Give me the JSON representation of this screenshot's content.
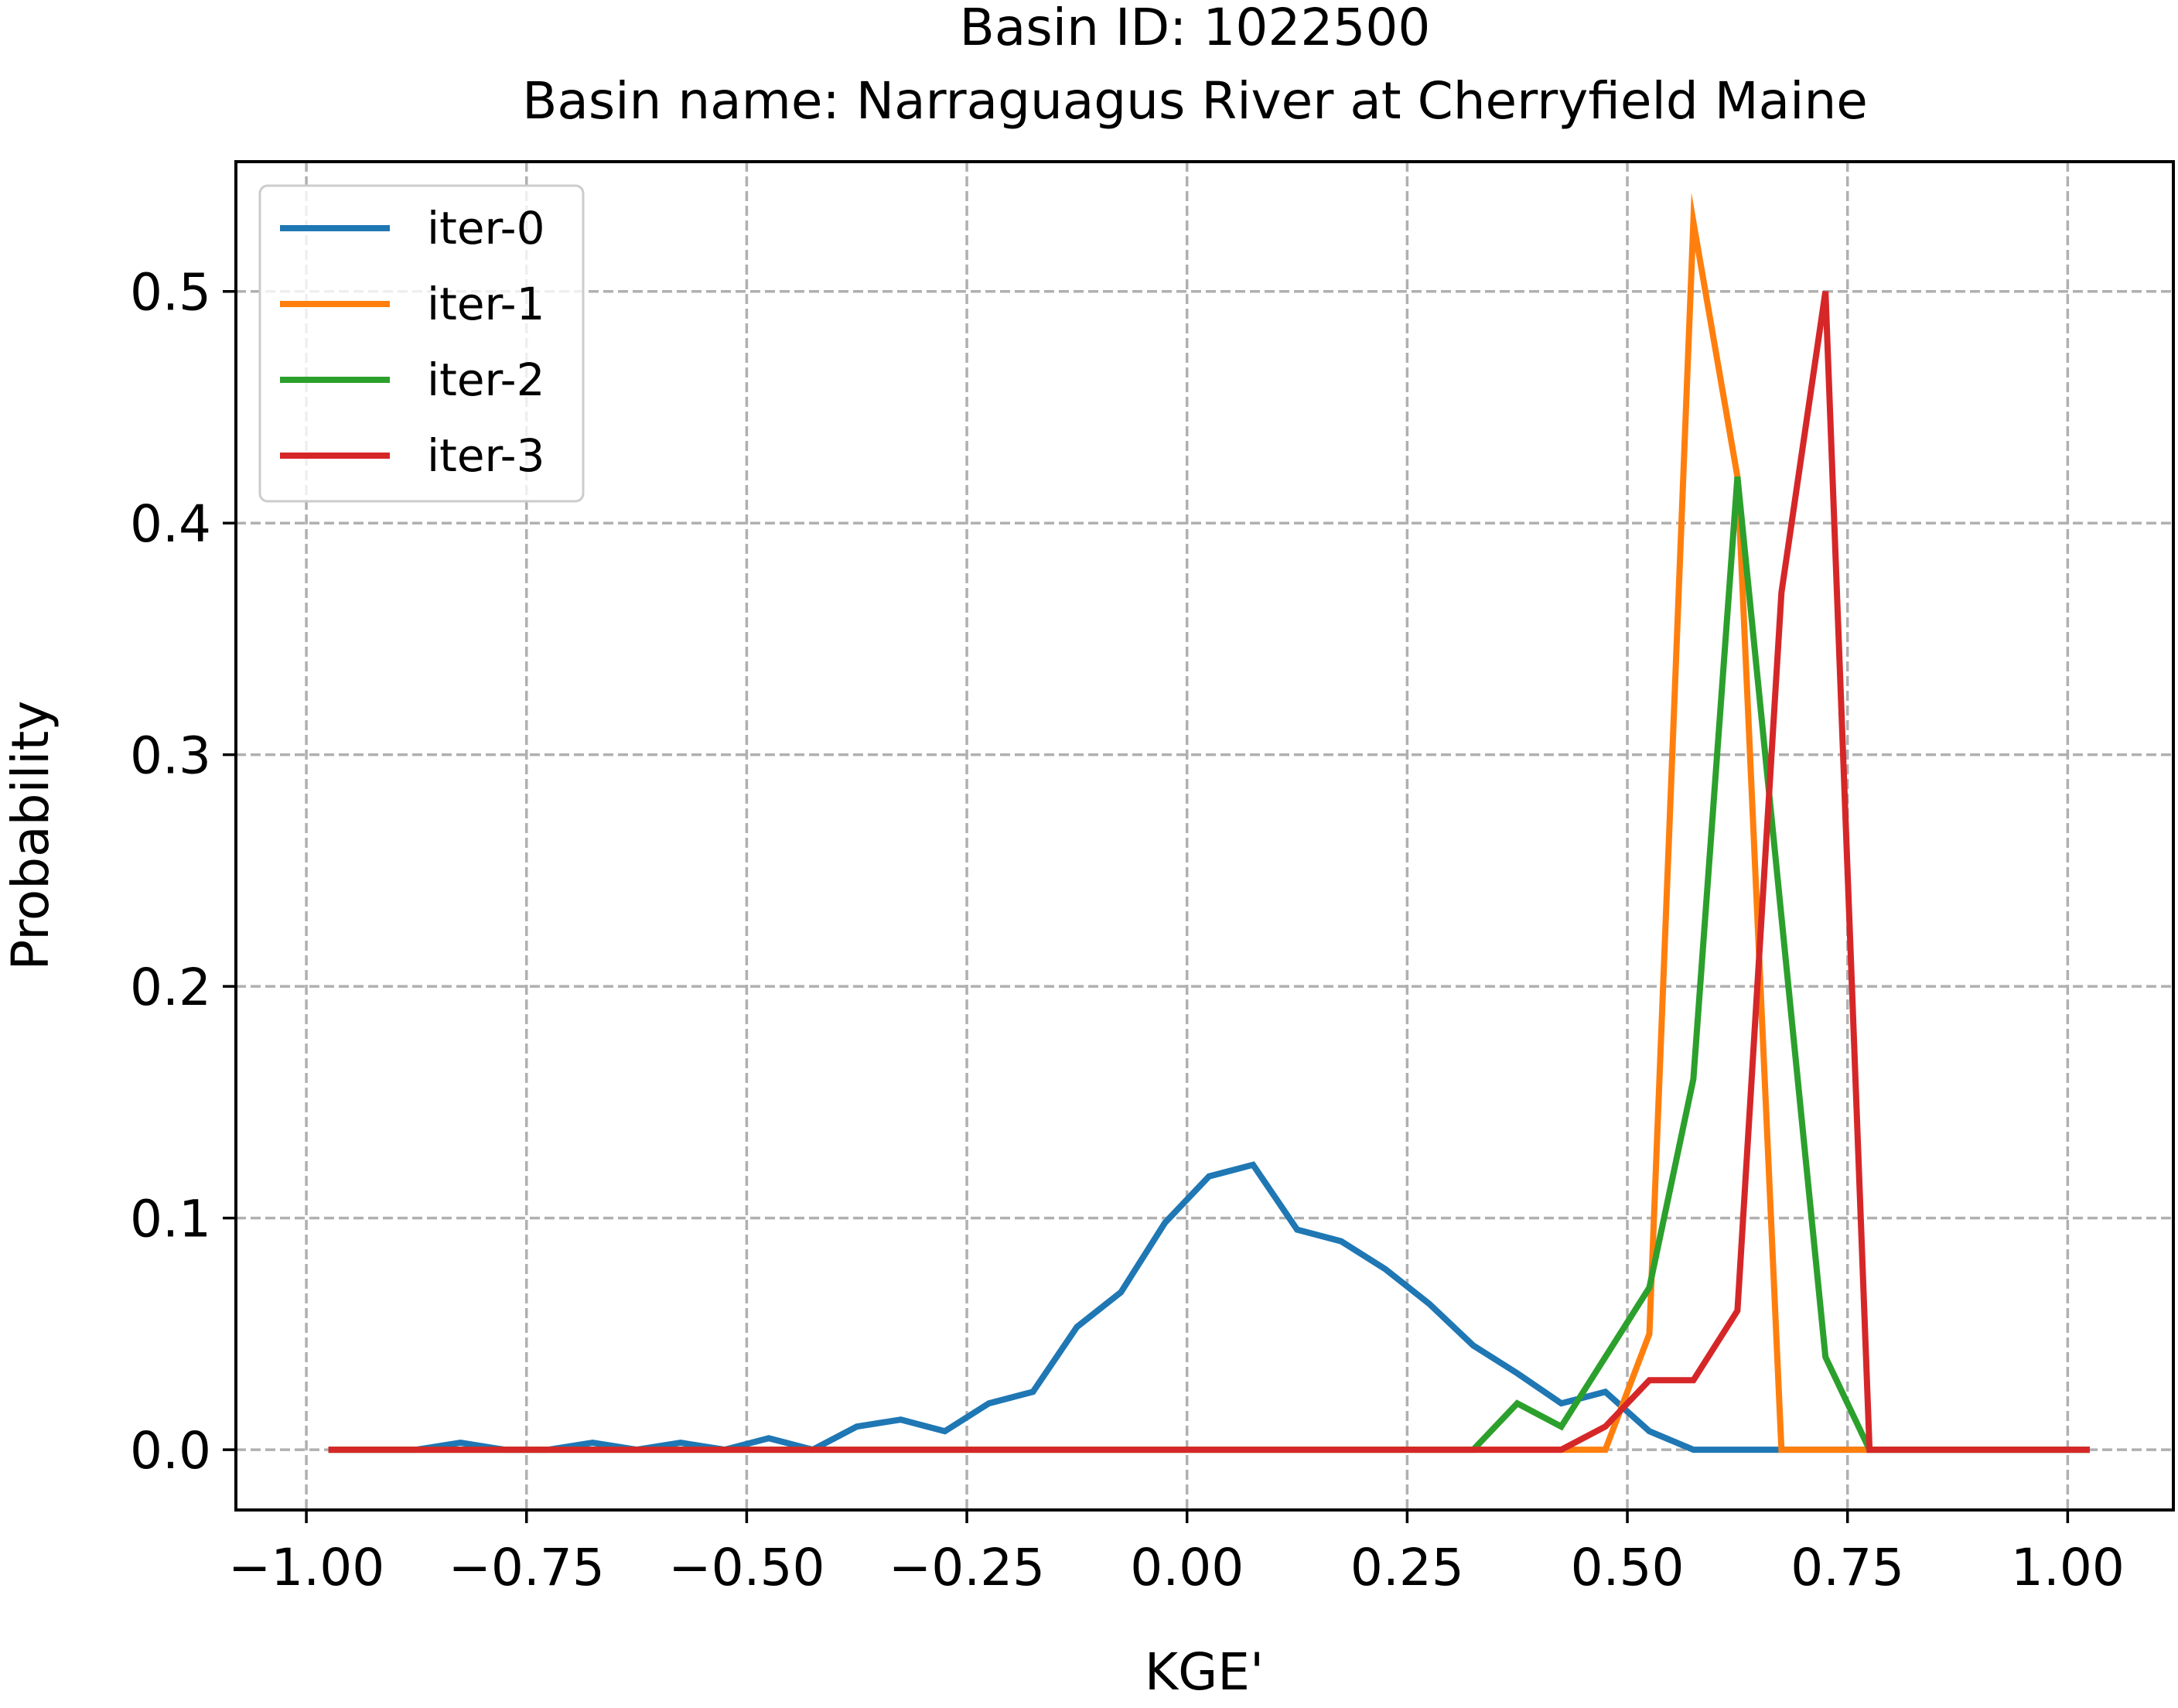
{
  "chart_data": {
    "type": "line",
    "title": "Basin ID: 1022500",
    "subtitle": "Basin name: Narraguagus River at Cherryfield Maine",
    "xlabel": "KGE'",
    "ylabel": "Probability",
    "xlim": [
      -1.08,
      1.12
    ],
    "ylim": [
      -0.026,
      0.556
    ],
    "xticks": [
      -1.0,
      -0.75,
      -0.5,
      -0.25,
      0.0,
      0.25,
      0.5,
      0.75,
      1.0
    ],
    "xtick_labels": [
      "−1.00",
      "−0.75",
      "−0.50",
      "−0.25",
      "0.00",
      "0.25",
      "0.50",
      "0.75",
      "1.00"
    ],
    "yticks": [
      0.0,
      0.1,
      0.2,
      0.3,
      0.4,
      0.5
    ],
    "ytick_labels": [
      "0.0",
      "0.1",
      "0.2",
      "0.3",
      "0.4",
      "0.5"
    ],
    "grid": true,
    "legend_position": "top-left",
    "x": [
      -0.975,
      -0.925,
      -0.875,
      -0.825,
      -0.775,
      -0.725,
      -0.675,
      -0.625,
      -0.575,
      -0.525,
      -0.475,
      -0.425,
      -0.375,
      -0.325,
      -0.275,
      -0.225,
      -0.175,
      -0.125,
      -0.075,
      -0.025,
      0.025,
      0.075,
      0.125,
      0.175,
      0.225,
      0.275,
      0.325,
      0.375,
      0.425,
      0.475,
      0.525,
      0.575,
      0.625,
      0.675,
      0.725,
      0.775,
      0.825,
      0.875,
      0.925,
      0.975,
      1.025
    ],
    "series": [
      {
        "name": "iter-0",
        "color": "#1f77b4",
        "values": [
          0,
          0,
          0,
          0.003,
          0,
          0,
          0.003,
          0,
          0.003,
          0,
          0.005,
          0,
          0.01,
          0.013,
          0.008,
          0.02,
          0.025,
          0.053,
          0.068,
          0.098,
          0.118,
          0.123,
          0.095,
          0.09,
          0.078,
          0.063,
          0.045,
          0.033,
          0.02,
          0.025,
          0.008,
          0,
          0,
          0,
          0,
          0,
          0,
          0,
          0,
          0,
          0
        ]
      },
      {
        "name": "iter-1",
        "color": "#ff7f0e",
        "values": [
          0,
          0,
          0,
          0,
          0,
          0,
          0,
          0,
          0,
          0,
          0,
          0,
          0,
          0,
          0,
          0,
          0,
          0,
          0,
          0,
          0,
          0,
          0,
          0,
          0,
          0,
          0,
          0,
          0,
          0,
          0.05,
          0.53,
          0.42,
          0,
          0,
          0,
          0,
          0,
          0,
          0,
          0
        ]
      },
      {
        "name": "iter-2",
        "color": "#2ca02c",
        "values": [
          0,
          0,
          0,
          0,
          0,
          0,
          0,
          0,
          0,
          0,
          0,
          0,
          0,
          0,
          0,
          0,
          0,
          0,
          0,
          0,
          0,
          0,
          0,
          0,
          0,
          0,
          0,
          0.02,
          0.01,
          0.04,
          0.07,
          0.16,
          0.42,
          0.23,
          0.04,
          0,
          0,
          0,
          0,
          0,
          0
        ]
      },
      {
        "name": "iter-3",
        "color": "#d62728",
        "values": [
          0,
          0,
          0,
          0,
          0,
          0,
          0,
          0,
          0,
          0,
          0,
          0,
          0,
          0,
          0,
          0,
          0,
          0,
          0,
          0,
          0,
          0,
          0,
          0,
          0,
          0,
          0,
          0,
          0,
          0.01,
          0.03,
          0.03,
          0.06,
          0.37,
          0.5,
          0,
          0,
          0,
          0,
          0,
          0
        ]
      }
    ]
  }
}
